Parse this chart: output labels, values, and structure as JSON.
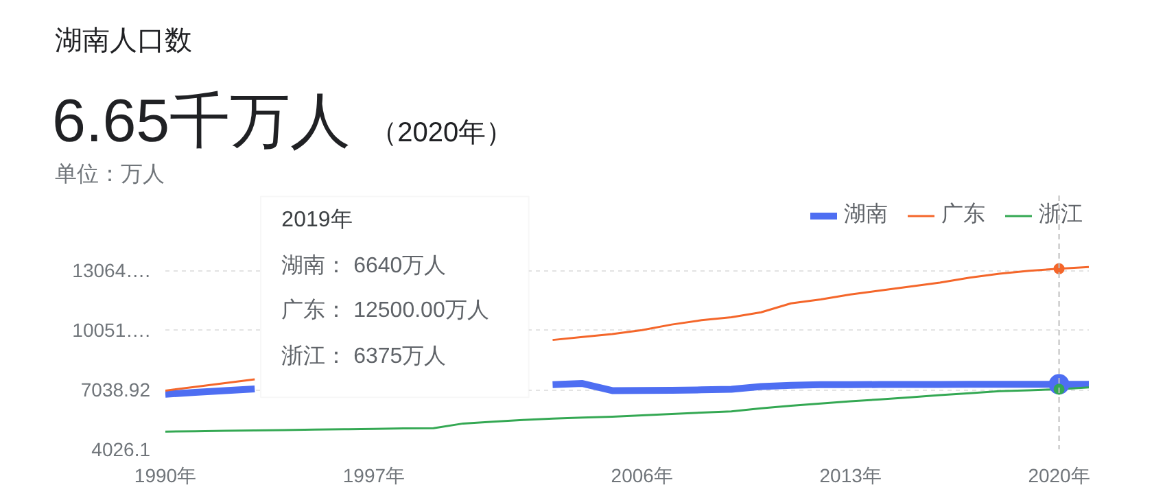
{
  "chart_data": {
    "type": "line",
    "title": "湖南人口数",
    "subtitle": "6.65千万人",
    "annotations": [
      "（2020年）",
      "单位：万人",
      "2019年",
      "湖南： 6640万人",
      "广东： 12500.00万人",
      "浙江： 6375万人"
    ],
    "x": [
      1990,
      1991,
      1992,
      1993,
      1994,
      1995,
      1996,
      1997,
      1998,
      1999,
      2000,
      2001,
      2002,
      2003,
      2004,
      2005,
      2006,
      2007,
      2008,
      2009,
      2010,
      2011,
      2012,
      2013,
      2014,
      2015,
      2016,
      2017,
      2018,
      2019,
      2020,
      2021
    ],
    "series": [
      {
        "name": "湖南",
        "color": "#4e6ef2",
        "values": [
          6810,
          6900,
          6990,
          7080,
          null,
          null,
          null,
          null,
          null,
          null,
          null,
          null,
          null,
          7290,
          7350,
          6990,
          7000,
          7010,
          7030,
          7060,
          7200,
          7260,
          7290,
          7290,
          7300,
          7300,
          7300,
          7310,
          7310,
          7310,
          7310,
          7310
        ]
      },
      {
        "name": "广东",
        "color": "#f4662a",
        "values": [
          6990,
          7180,
          7370,
          7560,
          null,
          null,
          null,
          null,
          null,
          null,
          null,
          null,
          null,
          9550,
          9700,
          9850,
          10050,
          10330,
          10550,
          10700,
          10950,
          11400,
          11600,
          11850,
          12050,
          12250,
          12450,
          12700,
          12900,
          13050,
          13150,
          13240
        ]
      },
      {
        "name": "浙江",
        "color": "#34a853",
        "values": [
          4920,
          4940,
          4960,
          4980,
          5000,
          5020,
          5040,
          5060,
          5080,
          5090,
          5330,
          5420,
          5510,
          5580,
          5630,
          5670,
          5740,
          5810,
          5880,
          5940,
          6100,
          6230,
          6340,
          6450,
          6550,
          6650,
          6760,
          6860,
          6960,
          7010,
          7060,
          7150
        ]
      },
      {
        "type": "scatter",
        "color": "#4e6ef2",
        "values": [
          null,
          null,
          null,
          null,
          null,
          null,
          null,
          null,
          null,
          null,
          null,
          null,
          null,
          null,
          null,
          null,
          null,
          null,
          null,
          null,
          null,
          null,
          null,
          null,
          null,
          null,
          null,
          null,
          null,
          null,
          7310,
          null
        ]
      },
      {
        "type": "scatter",
        "color": "#f4662a",
        "values": [
          null,
          null,
          null,
          null,
          null,
          null,
          null,
          null,
          null,
          null,
          null,
          null,
          null,
          null,
          null,
          null,
          null,
          null,
          null,
          null,
          null,
          null,
          null,
          null,
          null,
          null,
          null,
          null,
          null,
          null,
          13150,
          null
        ]
      },
      {
        "type": "scatter",
        "color": "#34a853",
        "values": [
          null,
          null,
          null,
          null,
          null,
          null,
          null,
          null,
          null,
          null,
          null,
          null,
          null,
          null,
          null,
          null,
          null,
          null,
          null,
          null,
          null,
          null,
          null,
          null,
          null,
          null,
          null,
          null,
          null,
          null,
          7060,
          null
        ]
      }
    ],
    "xlim": [
      1990,
      2021
    ],
    "xticks": [
      {
        "value": 1990,
        "label": "1990年"
      },
      {
        "value": 1997,
        "label": "1997年"
      },
      {
        "value": 2006,
        "label": "2006年"
      },
      {
        "value": 2013,
        "label": "2013年"
      },
      {
        "value": 2020,
        "label": "2020年"
      }
    ],
    "ylim": [
      4026.1,
      16850
    ],
    "yticks": [
      4026.1,
      7038.92,
      {
        "value": 10051,
        "label": "10051…."
      },
      {
        "value": 13064,
        "label": "13064…."
      }
    ],
    "ref_lines": [
      {
        "axis": "x",
        "value": 2020,
        "color": "#bdbdbd",
        "line_style": "dashed"
      }
    ],
    "grid": "y",
    "legend": "top right"
  }
}
